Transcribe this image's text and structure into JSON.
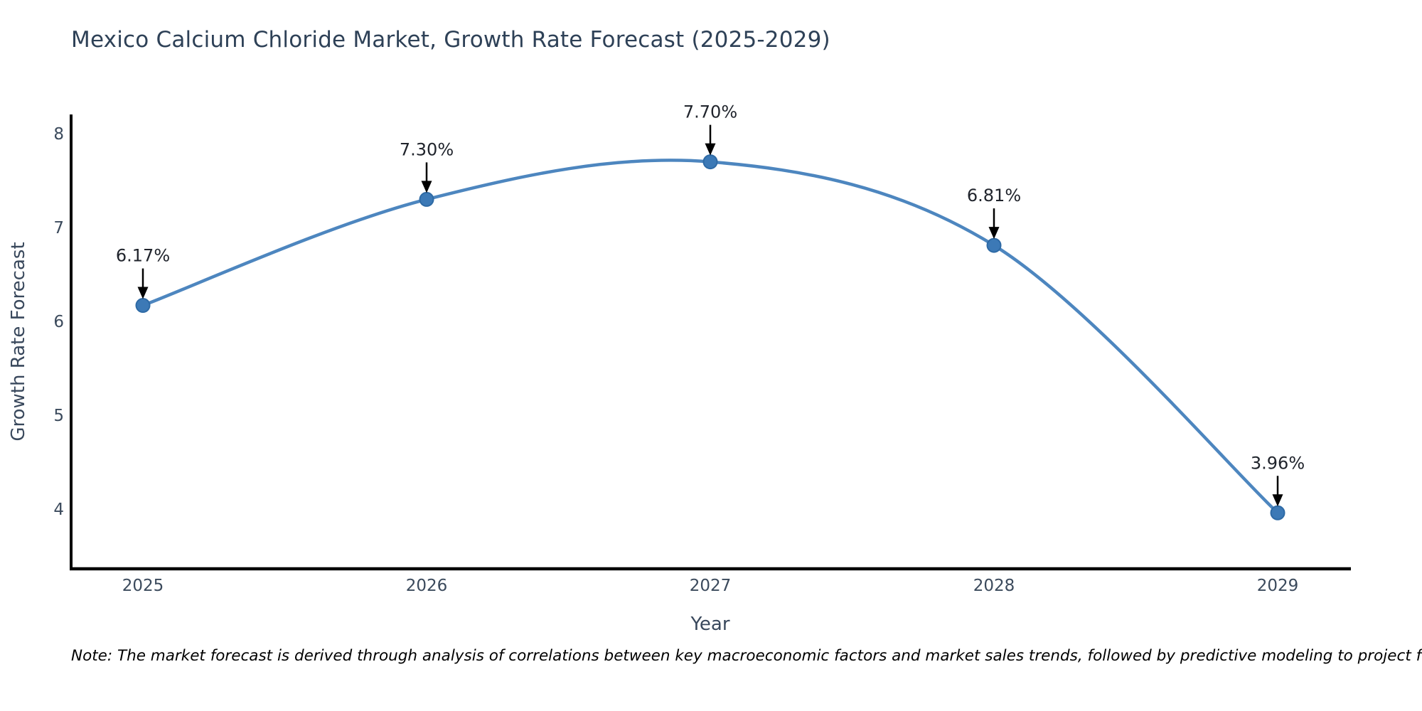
{
  "title": "Mexico Calcium Chloride Market, Growth Rate Forecast (2025-2029)",
  "note": "Note: The market forecast is derived through analysis of correlations between key macroeconomic factors and market sales trends, followed by predictive modeling to project future sales.",
  "chart_data": {
    "type": "line",
    "title": "Mexico Calcium Chloride Market, Growth Rate Forecast (2025-2029)",
    "xlabel": "Year",
    "ylabel": "Growth Rate Forecast",
    "x": [
      2025,
      2026,
      2027,
      2028,
      2029
    ],
    "values": [
      6.17,
      7.3,
      7.7,
      6.81,
      3.96
    ],
    "point_labels": [
      "6.17%",
      "7.30%",
      "7.70%",
      "6.81%",
      "3.96%"
    ],
    "x_tick_labels": [
      "2025",
      "2026",
      "2027",
      "2028",
      "2029"
    ],
    "y_tick_labels": [
      "4",
      "5",
      "6",
      "7",
      "8"
    ],
    "y_ticks": [
      4,
      5,
      6,
      7,
      8
    ],
    "ylim": [
      3.35,
      8.2
    ],
    "grid": false,
    "legend": "none",
    "annotation_style": "value label with black down-arrow pointing to marker",
    "colors": {
      "line": "#4d86bf",
      "marker_fill": "#3c79b6",
      "marker_edge": "#2e6aa5",
      "arrow": "#000000",
      "spine": "#000000",
      "title_text": "#2e4157",
      "axis_title_text": "#39485c",
      "tick_text": "#3b4a5c",
      "annotation_text": "#20242c"
    }
  }
}
